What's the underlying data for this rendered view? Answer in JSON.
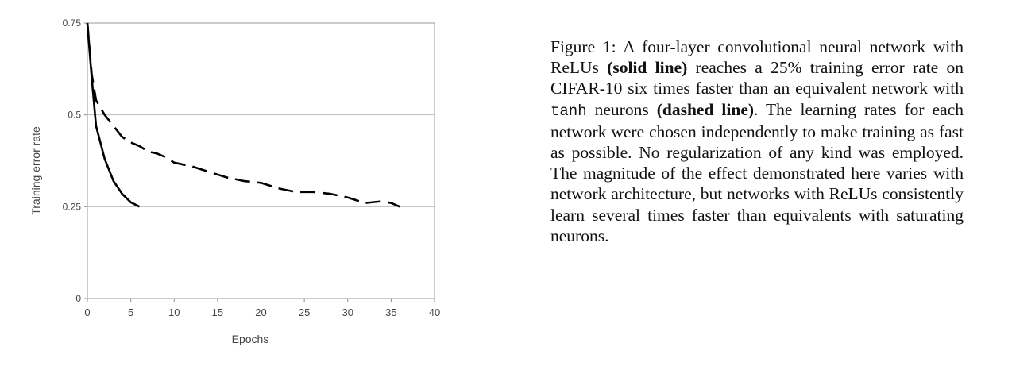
{
  "chart_data": {
    "type": "line",
    "xlabel": "Epochs",
    "ylabel": "Training error rate",
    "xlim": [
      0,
      40
    ],
    "ylim": [
      0,
      0.75
    ],
    "x_ticks": [
      "0",
      "5",
      "10",
      "15",
      "20",
      "25",
      "30",
      "35",
      "40"
    ],
    "y_ticks": [
      "0",
      "0.25",
      "0.5",
      "0.75"
    ],
    "grid": "horizontal",
    "series": [
      {
        "style": "solid",
        "x": [
          0,
          0.5,
          1,
          2,
          3,
          4,
          5,
          6
        ],
        "y": [
          0.75,
          0.6,
          0.47,
          0.38,
          0.32,
          0.285,
          0.262,
          0.25
        ]
      },
      {
        "style": "dashed",
        "x": [
          0,
          0.5,
          1,
          2,
          3,
          4,
          5,
          6,
          7,
          8,
          9,
          10,
          12,
          14,
          16,
          18,
          20,
          22,
          24,
          26,
          28,
          30,
          32,
          34,
          35,
          36
        ],
        "y": [
          0.75,
          0.61,
          0.54,
          0.5,
          0.47,
          0.44,
          0.425,
          0.415,
          0.4,
          0.395,
          0.385,
          0.37,
          0.36,
          0.345,
          0.33,
          0.32,
          0.315,
          0.3,
          0.29,
          0.29,
          0.285,
          0.275,
          0.26,
          0.265,
          0.26,
          0.25
        ]
      }
    ]
  },
  "caption": {
    "label": "Figure 1:",
    "t1": " A four-layer convolutional neural network with ReLUs ",
    "b1": "(solid line)",
    "t2": " reaches a 25% training error rate on CIFAR-10 six times faster than an equivalent network with ",
    "mono": "tanh",
    "t3": " neurons ",
    "b2": "(dashed line)",
    "t4": ". The learning rates for each network were chosen independently to make training as fast as possible. No regularization of any kind was employed. The magnitude of the effect demonstrated here varies with network architecture, but networks with ReLUs consistently learn several times faster than equivalents with saturating neurons."
  }
}
